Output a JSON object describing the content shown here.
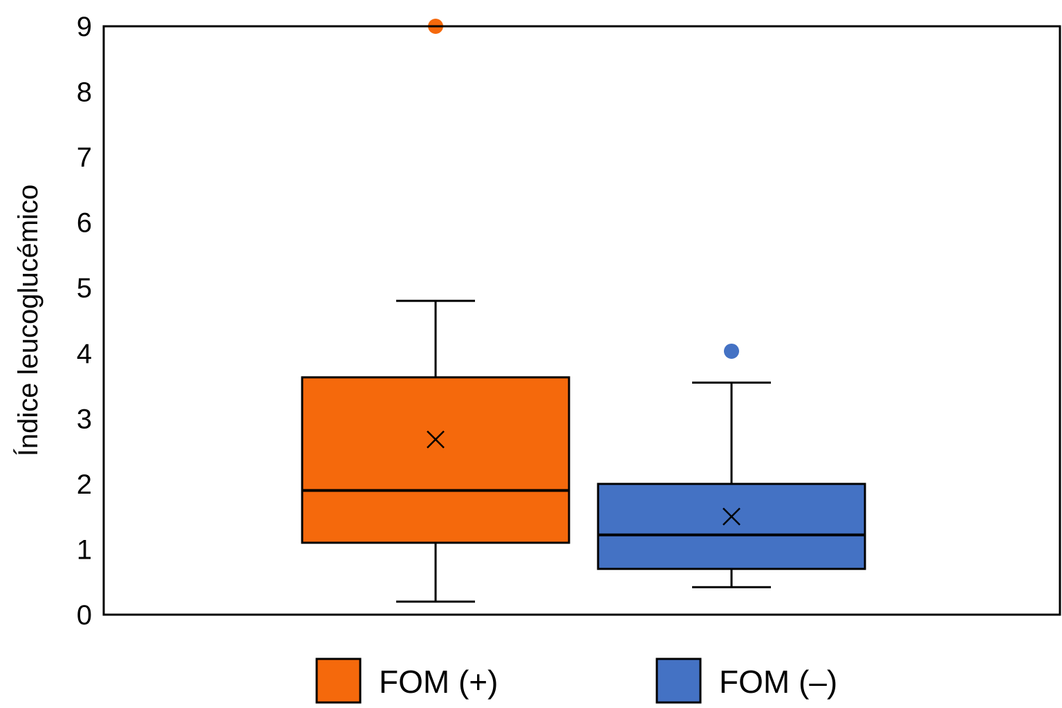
{
  "chart_data": {
    "type": "boxplot",
    "ylabel": "Índice leucoglucémico",
    "xlabel": "",
    "ylim": [
      0,
      9
    ],
    "yticks": [
      "0",
      "1",
      "2",
      "3",
      "4",
      "5",
      "6",
      "7",
      "8",
      "9"
    ],
    "grid": false,
    "legend_position": "bottom",
    "series": [
      {
        "name": "FOM (+)",
        "color": "#f5690c",
        "whisker_low": 0.2,
        "q1": 1.1,
        "median": 1.9,
        "q3": 3.63,
        "whisker_high": 4.8,
        "mean": 2.68,
        "outliers": [
          9.0
        ]
      },
      {
        "name": "FOM (–)",
        "color": "#4472c4",
        "whisker_low": 0.42,
        "q1": 0.7,
        "median": 1.22,
        "q3": 2.0,
        "whisker_high": 3.55,
        "mean": 1.5,
        "outliers": [
          4.03
        ]
      }
    ]
  }
}
